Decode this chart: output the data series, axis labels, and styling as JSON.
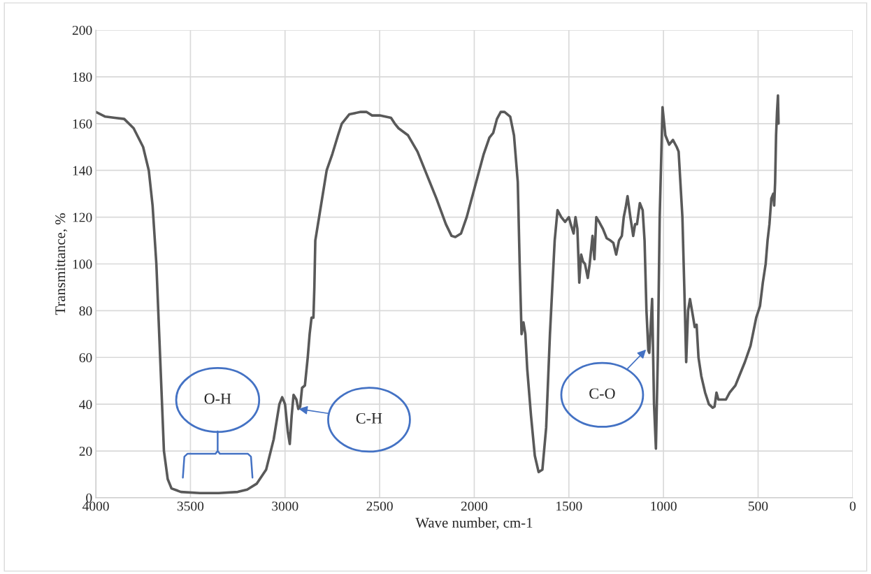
{
  "chart_data": {
    "type": "line",
    "xlabel": "Wave number, cm-1",
    "ylabel": "Transmittance, %",
    "xlim": [
      4000,
      0
    ],
    "xticks": [
      4000,
      3500,
      3000,
      2500,
      2000,
      1500,
      1000,
      500,
      0
    ],
    "ylim": [
      0,
      200
    ],
    "yticks": [
      0,
      20,
      40,
      60,
      80,
      100,
      120,
      140,
      160,
      180,
      200
    ],
    "grid": true,
    "marker": "none",
    "line_style": "solid",
    "series": [
      {
        "color": "#595959",
        "x": [
          4000,
          3950,
          3900,
          3850,
          3800,
          3750,
          3720,
          3700,
          3680,
          3670,
          3660,
          3650,
          3640,
          3620,
          3600,
          3550,
          3450,
          3350,
          3250,
          3200,
          3150,
          3100,
          3060,
          3030,
          3015,
          3000,
          2985,
          2975,
          2965,
          2955,
          2940,
          2930,
          2920,
          2910,
          2895,
          2880,
          2870,
          2860,
          2850,
          2845,
          2840,
          2820,
          2800,
          2780,
          2750,
          2720,
          2700,
          2660,
          2600,
          2570,
          2540,
          2500,
          2440,
          2420,
          2400,
          2350,
          2300,
          2250,
          2200,
          2150,
          2120,
          2100,
          2070,
          2040,
          2000,
          1950,
          1920,
          1900,
          1880,
          1860,
          1840,
          1810,
          1790,
          1770,
          1760,
          1750,
          1740,
          1730,
          1720,
          1700,
          1680,
          1660,
          1640,
          1620,
          1600,
          1575,
          1560,
          1540,
          1520,
          1500,
          1490,
          1475,
          1465,
          1455,
          1445,
          1435,
          1425,
          1415,
          1400,
          1390,
          1375,
          1365,
          1355,
          1340,
          1320,
          1300,
          1280,
          1265,
          1250,
          1235,
          1220,
          1210,
          1200,
          1190,
          1175,
          1160,
          1150,
          1140,
          1125,
          1110,
          1100,
          1090,
          1080,
          1075,
          1060,
          1050,
          1040,
          1030,
          1020,
          1005,
          990,
          970,
          950,
          930,
          920,
          900,
          890,
          880,
          870,
          860,
          845,
          835,
          825,
          815,
          800,
          780,
          760,
          740,
          730,
          720,
          710,
          690,
          670,
          650,
          620,
          600,
          570,
          540,
          510,
          490,
          475,
          460,
          450,
          440,
          430,
          420,
          415,
          410,
          405,
          400,
          395,
          392
        ],
        "values": [
          165,
          163,
          162.5,
          162,
          158,
          150,
          140,
          125,
          100,
          80,
          60,
          40,
          20,
          8,
          4,
          2.5,
          2,
          2,
          2.5,
          3.5,
          6,
          12,
          25,
          40,
          43,
          40,
          28,
          23,
          35,
          44,
          42,
          38,
          39,
          47,
          48,
          60,
          70,
          77,
          77,
          90,
          110,
          120,
          130,
          140,
          147,
          155,
          160,
          164,
          165,
          165,
          163.5,
          163.5,
          162.5,
          160,
          158,
          155,
          148,
          138,
          128,
          117,
          112,
          111.5,
          113,
          120,
          132,
          147,
          154,
          156,
          162,
          165,
          165,
          163,
          155,
          135,
          100,
          70,
          75,
          70,
          55,
          35,
          18,
          11,
          12,
          30,
          70,
          110,
          123,
          120,
          118,
          120,
          117,
          113,
          120,
          115,
          92,
          104,
          101,
          100,
          94,
          100,
          112,
          102,
          120,
          118,
          115,
          111,
          110,
          109,
          104,
          110,
          112,
          120,
          124,
          129,
          120,
          112,
          117,
          117,
          126,
          123,
          110,
          80,
          63,
          62,
          85,
          40,
          21,
          60,
          120,
          167,
          155,
          151,
          153,
          150,
          148,
          120,
          90,
          58,
          80,
          85,
          78,
          73,
          74,
          60,
          52,
          45,
          40,
          38.5,
          39,
          45,
          42,
          42,
          42,
          45,
          48,
          52,
          58,
          65,
          77,
          82,
          92,
          100,
          110,
          117,
          128,
          130,
          125,
          135,
          155,
          165,
          172,
          160
        ]
      }
    ],
    "annotations": [
      "O-H",
      "C-H",
      "C-O"
    ]
  }
}
